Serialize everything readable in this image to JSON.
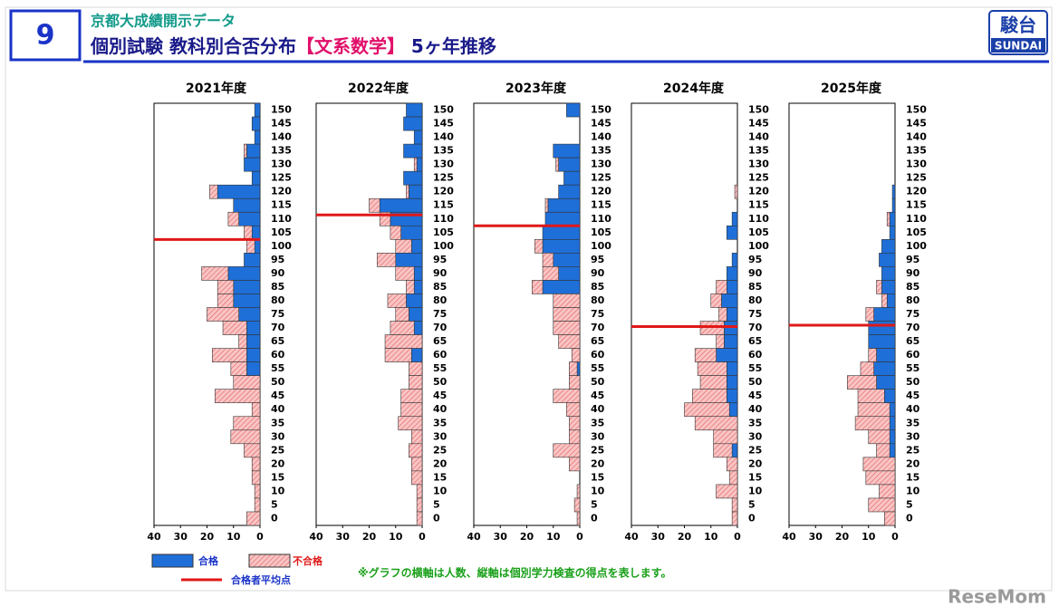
{
  "header": {
    "number": "9",
    "subtitle": "京都大成績開示データ",
    "title_before": "個別試験 教科別合否分布",
    "title_bracket_open": "【",
    "title_highlight": "文系数学",
    "title_bracket_close": "】",
    "title_after": " 5ヶ年推移",
    "logo_top": "駿台",
    "logo_bottom": "SUNDAI"
  },
  "legend": [
    {
      "name": "合格",
      "color": "#1f6fd8"
    },
    {
      "name": "不合格",
      "color": "#f9c4c4"
    },
    {
      "name": "合格者平均点",
      "color": "#e01818"
    }
  ],
  "note": "※グラフの横軸は人数、縦軸は個別学力検査の得点を表します。",
  "watermark": "ReseMom",
  "chart_data": [
    {
      "type": "bar",
      "title": "2021年度",
      "x_reversed": true,
      "xlim": [
        0,
        40
      ],
      "xticks": [
        0,
        10,
        20,
        30,
        40
      ],
      "average": 102.5,
      "categories": [
        150,
        145,
        140,
        135,
        130,
        125,
        120,
        115,
        110,
        105,
        100,
        95,
        90,
        85,
        80,
        75,
        70,
        65,
        60,
        55,
        50,
        45,
        40,
        35,
        30,
        25,
        20,
        15,
        10,
        5,
        0
      ],
      "series": [
        {
          "values": [
            2,
            3,
            2,
            5,
            6,
            3,
            16,
            10,
            8,
            3,
            2,
            6,
            12,
            10,
            10,
            8,
            5,
            5,
            5,
            5,
            0,
            0,
            0,
            0,
            0,
            0,
            0,
            0,
            0,
            0,
            0
          ]
        },
        {
          "values": [
            0,
            0,
            0,
            1,
            0,
            0,
            3,
            0,
            4,
            3,
            3,
            0,
            10,
            6,
            6,
            12,
            9,
            3,
            13,
            6,
            10,
            17,
            3,
            10,
            11,
            6,
            3,
            3,
            2,
            2,
            5
          ]
        }
      ]
    },
    {
      "type": "bar",
      "title": "2022年度",
      "x_reversed": true,
      "xlim": [
        0,
        40
      ],
      "xticks": [
        0,
        10,
        20,
        30,
        40
      ],
      "average": 111.5,
      "categories": [
        150,
        145,
        140,
        135,
        130,
        125,
        120,
        115,
        110,
        105,
        100,
        95,
        90,
        85,
        80,
        75,
        70,
        65,
        60,
        55,
        50,
        45,
        40,
        35,
        30,
        25,
        20,
        15,
        10,
        5,
        0
      ],
      "series": [
        {
          "values": [
            6,
            7,
            3,
            7,
            2,
            7,
            5,
            16,
            12,
            8,
            4,
            10,
            3,
            3,
            6,
            5,
            3,
            0,
            4,
            0,
            0,
            0,
            0,
            0,
            0,
            0,
            0,
            0,
            0,
            0,
            0
          ]
        },
        {
          "values": [
            0,
            0,
            0,
            0,
            1,
            0,
            1,
            4,
            4,
            4,
            6,
            7,
            7,
            3,
            7,
            5,
            9,
            14,
            10,
            5,
            5,
            8,
            8,
            9,
            4,
            5,
            4,
            4,
            2,
            2,
            2
          ]
        }
      ]
    },
    {
      "type": "bar",
      "title": "2023年度",
      "x_reversed": true,
      "xlim": [
        0,
        40
      ],
      "xticks": [
        0,
        10,
        20,
        30,
        40
      ],
      "average": 107.5,
      "categories": [
        150,
        145,
        140,
        135,
        130,
        125,
        120,
        115,
        110,
        105,
        100,
        95,
        90,
        85,
        80,
        75,
        70,
        65,
        60,
        55,
        50,
        45,
        40,
        35,
        30,
        25,
        20,
        15,
        10,
        5,
        0
      ],
      "series": [
        {
          "values": [
            5,
            0,
            0,
            10,
            8,
            6,
            8,
            12,
            13,
            14,
            14,
            10,
            8,
            14,
            0,
            0,
            0,
            0,
            0,
            1,
            0,
            0,
            0,
            0,
            0,
            0,
            0,
            0,
            0,
            0,
            0
          ]
        },
        {
          "values": [
            0,
            0,
            0,
            0,
            1,
            0,
            0,
            1,
            0,
            0,
            3,
            4,
            6,
            4,
            10,
            10,
            10,
            8,
            3,
            3,
            4,
            10,
            5,
            4,
            4,
            10,
            4,
            0,
            1,
            2,
            1
          ]
        }
      ]
    },
    {
      "type": "bar",
      "title": "2024年度",
      "x_reversed": true,
      "xlim": [
        0,
        40
      ],
      "xticks": [
        0,
        10,
        20,
        30,
        40
      ],
      "average": 70.5,
      "categories": [
        150,
        145,
        140,
        135,
        130,
        125,
        120,
        115,
        110,
        105,
        100,
        95,
        90,
        85,
        80,
        75,
        70,
        65,
        60,
        55,
        50,
        45,
        40,
        35,
        30,
        25,
        20,
        15,
        10,
        5,
        0
      ],
      "series": [
        {
          "values": [
            0,
            0,
            0,
            0,
            0,
            0,
            0,
            0,
            2,
            4,
            0,
            2,
            4,
            4,
            6,
            4,
            5,
            5,
            8,
            4,
            4,
            4,
            3,
            0,
            0,
            2,
            0,
            0,
            0,
            0,
            0
          ]
        },
        {
          "values": [
            0,
            0,
            0,
            0,
            0,
            0,
            1,
            0,
            0,
            0,
            0,
            0,
            0,
            4,
            4,
            3,
            9,
            3,
            8,
            11,
            10,
            13,
            17,
            16,
            9,
            7,
            4,
            3,
            8,
            2,
            2
          ]
        }
      ]
    },
    {
      "type": "bar",
      "title": "2025年度",
      "x_reversed": true,
      "xlim": [
        0,
        40
      ],
      "xticks": [
        0,
        10,
        20,
        30,
        40
      ],
      "average": 71,
      "categories": [
        150,
        145,
        140,
        135,
        130,
        125,
        120,
        115,
        110,
        105,
        100,
        95,
        90,
        85,
        80,
        75,
        70,
        65,
        60,
        55,
        50,
        45,
        40,
        35,
        30,
        25,
        20,
        15,
        10,
        5,
        0
      ],
      "series": [
        {
          "values": [
            0,
            0,
            0,
            0,
            0,
            0,
            1,
            1,
            2,
            2,
            5,
            6,
            5,
            5,
            3,
            8,
            10,
            10,
            7,
            8,
            7,
            4,
            2,
            2,
            2,
            2,
            0,
            0,
            0,
            0,
            0
          ]
        },
        {
          "values": [
            0,
            0,
            0,
            0,
            0,
            0,
            0,
            0,
            1,
            0,
            0,
            0,
            0,
            2,
            2,
            3,
            0,
            0,
            3,
            5,
            11,
            10,
            12,
            13,
            8,
            5,
            12,
            11,
            6,
            10,
            4
          ]
        }
      ]
    }
  ]
}
